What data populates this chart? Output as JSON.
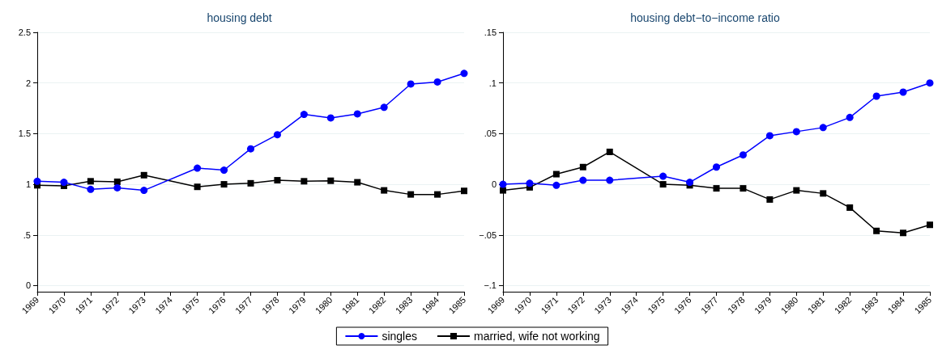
{
  "chart_data": [
    {
      "type": "line",
      "title": "housing debt",
      "x": [
        1969,
        1970,
        1971,
        1972,
        1973,
        1975,
        1976,
        1977,
        1978,
        1979,
        1980,
        1981,
        1982,
        1983,
        1984,
        1985
      ],
      "series": [
        {
          "name": "singles",
          "color": "#0000ff",
          "marker": "circle",
          "values": [
            1.03,
            1.02,
            0.95,
            0.965,
            0.94,
            1.16,
            1.14,
            1.35,
            1.49,
            1.69,
            1.655,
            1.695,
            1.76,
            1.99,
            2.01,
            2.095
          ]
        },
        {
          "name": "married, wife not working",
          "color": "#000000",
          "marker": "square",
          "values": [
            0.99,
            0.985,
            1.03,
            1.025,
            1.09,
            0.975,
            1.0,
            1.01,
            1.04,
            1.03,
            1.035,
            1.02,
            0.94,
            0.9,
            0.9,
            0.935
          ]
        }
      ],
      "xlim": [
        1969,
        1985
      ],
      "xticks": [
        1969,
        1970,
        1971,
        1972,
        1973,
        1974,
        1975,
        1976,
        1977,
        1978,
        1979,
        1980,
        1981,
        1982,
        1983,
        1984,
        1985
      ],
      "ylim": [
        -0.06,
        2.5
      ],
      "yticks": [
        0,
        {
          "value": 0.5,
          "label": ".5"
        },
        1,
        1.5,
        2,
        2.5
      ],
      "grid": "y",
      "legend": "bottom"
    },
    {
      "type": "line",
      "title": "housing debt−to−income ratio",
      "x": [
        1969,
        1970,
        1971,
        1972,
        1973,
        1975,
        1976,
        1977,
        1978,
        1979,
        1980,
        1981,
        1982,
        1983,
        1984,
        1985
      ],
      "series": [
        {
          "color": "#0000ff",
          "marker": "circle",
          "values": [
            0.0,
            0.001,
            -0.001,
            0.004,
            0.004,
            0.008,
            0.002,
            0.017,
            0.029,
            0.048,
            0.052,
            0.056,
            0.066,
            0.087,
            0.091,
            0.1
          ]
        },
        {
          "color": "#000000",
          "marker": "square",
          "values": [
            -0.006,
            -0.003,
            0.01,
            0.017,
            0.032,
            0.0,
            -0.001,
            -0.004,
            -0.004,
            -0.015,
            -0.006,
            -0.009,
            -0.023,
            -0.046,
            -0.048,
            -0.04
          ]
        }
      ],
      "xlim": [
        1969,
        1985
      ],
      "xticks": [
        1969,
        1970,
        1971,
        1972,
        1973,
        1974,
        1975,
        1976,
        1977,
        1978,
        1979,
        1980,
        1981,
        1982,
        1983,
        1984,
        1985
      ],
      "ylim": [
        -0.106,
        0.15
      ],
      "yticks": [
        {
          "value": -0.1,
          "label": "−.1"
        },
        {
          "value": -0.05,
          "label": "−.05"
        },
        0,
        {
          "value": 0.05,
          "label": ".05"
        },
        {
          "value": 0.1,
          "label": ".1"
        },
        {
          "value": 0.15,
          "label": ".15"
        }
      ],
      "grid": "y"
    }
  ]
}
